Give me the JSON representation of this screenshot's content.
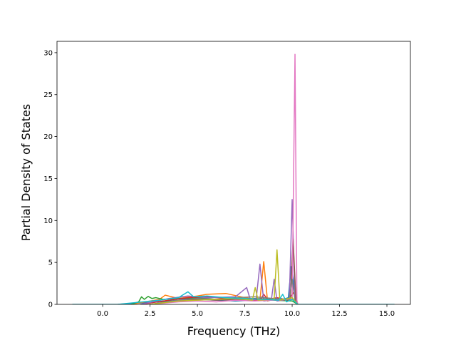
{
  "chart_data": {
    "type": "line",
    "xlabel": "Frequency (THz)",
    "ylabel": "Partial Density of States",
    "xlim": [
      -2.41,
      16.24
    ],
    "ylim": [
      0,
      31.35
    ],
    "xticks": [
      {
        "value": 0,
        "label": "0.0"
      },
      2.5,
      {
        "value": 5,
        "label": "5.0"
      },
      7.5,
      {
        "value": 10,
        "label": "10.0"
      },
      12.5,
      {
        "value": 15,
        "label": "15.0"
      }
    ],
    "yticks": [
      0,
      5,
      10,
      15,
      20,
      25,
      30
    ],
    "series": [
      {
        "color": "#1f77b4",
        "x": [
          0.8,
          3,
          4,
          4.5,
          5,
          6,
          7,
          8,
          8.8,
          9.4,
          9.8,
          9.95,
          10.05,
          10.2,
          10.3
        ],
        "values": [
          0,
          0.3,
          0.5,
          0.7,
          0.6,
          0.5,
          0.4,
          0.5,
          0.6,
          0.5,
          0.8,
          4.5,
          3,
          0.2,
          0
        ]
      },
      {
        "color": "#ff7f0e",
        "x": [
          1.5,
          3,
          3.3,
          4,
          5,
          5.5,
          6.5,
          7.5,
          8.3,
          8.5,
          8.7,
          9,
          9.9,
          10.05,
          10.2,
          10.3
        ],
        "values": [
          0,
          0.6,
          1.1,
          0.7,
          1.0,
          1.2,
          1.3,
          0.8,
          0.5,
          5.1,
          0.4,
          0.6,
          0.5,
          7,
          0.3,
          0
        ]
      },
      {
        "color": "#2ca02c",
        "x": [
          1.5,
          1.9,
          2.05,
          2.2,
          2.4,
          2.6,
          2.8,
          3.2,
          4,
          5,
          6,
          7,
          8,
          9,
          10,
          10.3
        ],
        "values": [
          0,
          0.3,
          0.9,
          0.6,
          0.95,
          0.7,
          0.8,
          0.6,
          0.7,
          0.8,
          0.6,
          0.5,
          0.6,
          0.5,
          0.4,
          0
        ]
      },
      {
        "color": "#d62728",
        "x": [
          2,
          3.5,
          4.5,
          5.5,
          6.5,
          7.5,
          8.3,
          8.5,
          8.7,
          9.2,
          9.8,
          10.1,
          10.3
        ],
        "values": [
          0,
          0.5,
          0.8,
          0.9,
          0.7,
          0.6,
          0.5,
          1.2,
          0.6,
          0.8,
          0.5,
          1.5,
          0
        ]
      },
      {
        "color": "#9467bd",
        "x": [
          2,
          3.5,
          4.5,
          5.5,
          7,
          7.6,
          7.8,
          8.1,
          8.3,
          8.5,
          8.9,
          9.05,
          9.2,
          9.85,
          10.0,
          10.15,
          10.3
        ],
        "values": [
          0,
          0.7,
          1.0,
          0.8,
          0.9,
          2,
          0.5,
          0.6,
          4.8,
          0.4,
          0.5,
          3,
          0.4,
          0.6,
          12.5,
          0.5,
          0
        ]
      },
      {
        "color": "#8c564b",
        "x": [
          2.5,
          4,
          5,
          6,
          7,
          8,
          9,
          9.9,
          10.05,
          10.2,
          10.3
        ],
        "values": [
          0,
          0.4,
          0.6,
          0.5,
          0.6,
          0.7,
          0.6,
          0.5,
          7.8,
          0.4,
          0
        ]
      },
      {
        "color": "#e377c2",
        "x": [
          2.5,
          4,
          5,
          6,
          7,
          8,
          9,
          10.0,
          10.15,
          10.25,
          10.3
        ],
        "values": [
          0,
          0.3,
          0.4,
          0.3,
          0.5,
          0.4,
          0.5,
          0.6,
          29.8,
          0.5,
          0
        ]
      },
      {
        "color": "#7f7f7f",
        "x": [
          2.5,
          4,
          5,
          6,
          7,
          8,
          9,
          9.85,
          10.0,
          10.15,
          10.3
        ],
        "values": [
          0,
          0.5,
          0.7,
          0.6,
          0.8,
          0.9,
          0.7,
          0.6,
          3,
          0.4,
          0
        ]
      },
      {
        "color": "#bcbd22",
        "x": [
          2.5,
          4,
          5,
          6,
          7,
          7.9,
          8.05,
          8.2,
          9.05,
          9.2,
          9.35,
          10,
          10.3
        ],
        "values": [
          0,
          0.4,
          0.5,
          0.6,
          0.7,
          0.5,
          2,
          0.5,
          0.6,
          6.5,
          0.5,
          0.8,
          0
        ]
      },
      {
        "color": "#17becf",
        "x": [
          -1.6,
          0.8,
          3,
          4,
          4.5,
          4.8,
          5.5,
          6.5,
          7.5,
          8.5,
          9.3,
          9.5,
          9.7,
          10.0,
          10.3,
          15.4
        ],
        "values": [
          0,
          0,
          0.5,
          0.8,
          1.5,
          0.9,
          1.0,
          0.8,
          0.7,
          0.6,
          0.5,
          1.2,
          0.3,
          0.6,
          0,
          0
        ]
      }
    ]
  }
}
